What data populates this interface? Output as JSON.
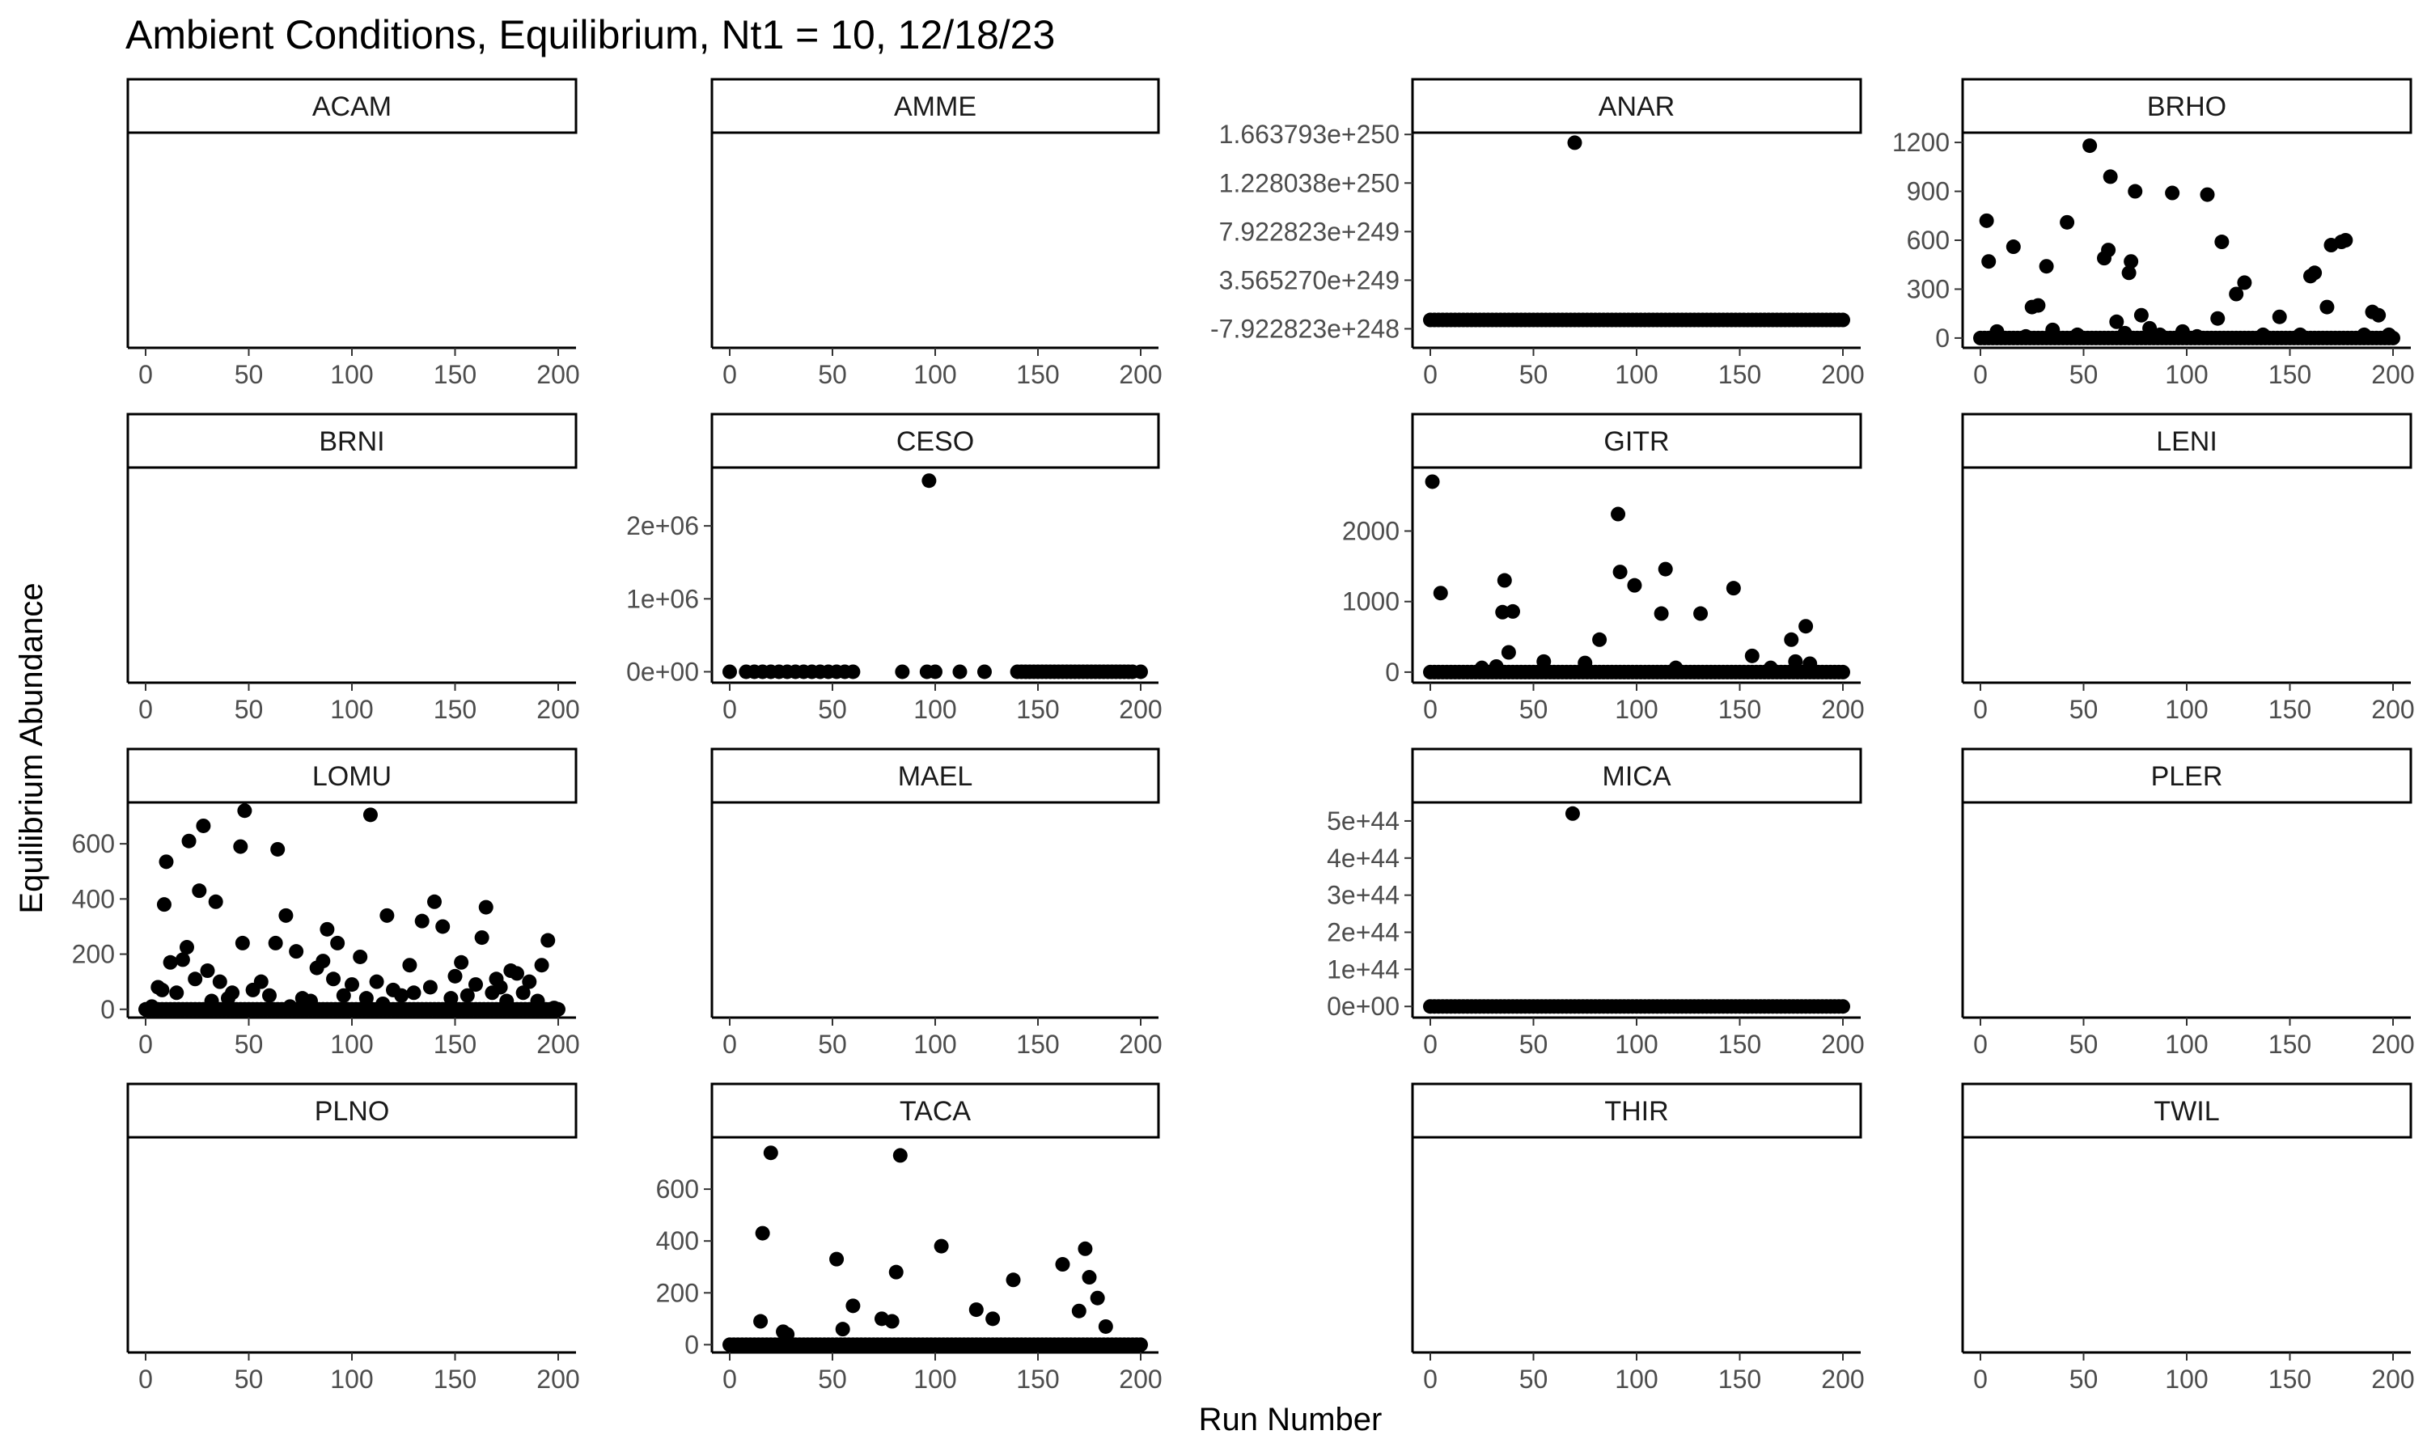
{
  "chart_data": {
    "type": "scatter",
    "title": "Ambient Conditions, Equilibrium, Nt1 = 10, 12/18/23",
    "xlabel": "Run Number",
    "ylabel": "Equilibrium Abundance",
    "layout": "facet grid, 4 rows x 4 columns, free y scales",
    "grid": false,
    "legend": "none",
    "point_color": "#000000",
    "xlim": [
      0,
      200
    ],
    "x_ticks": [
      "0",
      "50",
      "100",
      "150",
      "200"
    ],
    "panels": [
      {
        "name": "ACAM",
        "ylim": [
          0,
          1
        ],
        "y_ticks": [],
        "points": []
      },
      {
        "name": "AMME",
        "ylim": [
          0,
          1
        ],
        "y_ticks": [],
        "points": []
      },
      {
        "name": "ANAR",
        "ylim": [
          -2.5e+249,
          1.68e+250
        ],
        "y_ticks": [
          {
            "v": -7.922823e+248,
            "label": "-7.922823e+248"
          },
          {
            "v": 3.56527e+249,
            "label": "3.565270e+249"
          },
          {
            "v": 7.922823e+249,
            "label": "7.922823e+249"
          },
          {
            "v": 1.228038e+250,
            "label": "1.228038e+250"
          },
          {
            "v": 1.663793e+250,
            "label": "1.663793e+250"
          }
        ],
        "points": [
          [
            70,
            1.59e+250
          ]
        ],
        "baseline": 0
      },
      {
        "name": "BRHO",
        "ylim": [
          -60,
          1260
        ],
        "y_ticks": [
          {
            "v": 0,
            "label": "0"
          },
          {
            "v": 300,
            "label": "300"
          },
          {
            "v": 600,
            "label": "600"
          },
          {
            "v": 900,
            "label": "900"
          },
          {
            "v": 1200,
            "label": "1200"
          }
        ],
        "points": [
          [
            3,
            720
          ],
          [
            4,
            470
          ],
          [
            8,
            40
          ],
          [
            16,
            560
          ],
          [
            22,
            10
          ],
          [
            25,
            190
          ],
          [
            28,
            200
          ],
          [
            32,
            440
          ],
          [
            35,
            50
          ],
          [
            42,
            710
          ],
          [
            47,
            20
          ],
          [
            53,
            1180
          ],
          [
            60,
            490
          ],
          [
            62,
            540
          ],
          [
            63,
            990
          ],
          [
            66,
            100
          ],
          [
            70,
            30
          ],
          [
            72,
            400
          ],
          [
            73,
            470
          ],
          [
            75,
            900
          ],
          [
            78,
            140
          ],
          [
            82,
            60
          ],
          [
            87,
            20
          ],
          [
            93,
            890
          ],
          [
            98,
            40
          ],
          [
            105,
            10
          ],
          [
            110,
            880
          ],
          [
            115,
            120
          ],
          [
            117,
            590
          ],
          [
            124,
            270
          ],
          [
            128,
            340
          ],
          [
            137,
            20
          ],
          [
            145,
            130
          ],
          [
            155,
            20
          ],
          [
            160,
            380
          ],
          [
            162,
            400
          ],
          [
            168,
            190
          ],
          [
            170,
            570
          ],
          [
            175,
            590
          ],
          [
            177,
            600
          ],
          [
            186,
            20
          ],
          [
            190,
            160
          ],
          [
            193,
            140
          ],
          [
            198,
            20
          ]
        ],
        "baseline": 0
      },
      {
        "name": "BRNI",
        "ylim": [
          0,
          1
        ],
        "y_ticks": [],
        "points": []
      },
      {
        "name": "CESO",
        "ylim": [
          -150000,
          2800000
        ],
        "y_ticks": [
          {
            "v": 0,
            "label": "0e+00"
          },
          {
            "v": 1000000,
            "label": "1e+06"
          },
          {
            "v": 2000000,
            "label": "2e+06"
          }
        ],
        "points": [
          [
            97,
            2620000
          ]
        ],
        "baseline": 0,
        "baseline_sparse": true
      },
      {
        "name": "GITR",
        "ylim": [
          -150,
          2900
        ],
        "y_ticks": [
          {
            "v": 0,
            "label": "0"
          },
          {
            "v": 1000,
            "label": "1000"
          },
          {
            "v": 2000,
            "label": "2000"
          }
        ],
        "points": [
          [
            1,
            2700
          ],
          [
            5,
            1120
          ],
          [
            25,
            60
          ],
          [
            32,
            80
          ],
          [
            35,
            850
          ],
          [
            36,
            1300
          ],
          [
            38,
            280
          ],
          [
            40,
            860
          ],
          [
            55,
            150
          ],
          [
            75,
            130
          ],
          [
            82,
            460
          ],
          [
            91,
            2240
          ],
          [
            92,
            1420
          ],
          [
            99,
            1230
          ],
          [
            112,
            830
          ],
          [
            114,
            1460
          ],
          [
            119,
            60
          ],
          [
            131,
            830
          ],
          [
            147,
            1190
          ],
          [
            156,
            230
          ],
          [
            165,
            60
          ],
          [
            175,
            460
          ],
          [
            177,
            150
          ],
          [
            182,
            650
          ],
          [
            184,
            120
          ]
        ],
        "baseline": 0
      },
      {
        "name": "LENI",
        "ylim": [
          0,
          1
        ],
        "y_ticks": [],
        "points": []
      },
      {
        "name": "LOMU",
        "ylim": [
          -30,
          750
        ],
        "y_ticks": [
          {
            "v": 0,
            "label": "0"
          },
          {
            "v": 200,
            "label": "200"
          },
          {
            "v": 400,
            "label": "400"
          },
          {
            "v": 600,
            "label": "600"
          }
        ],
        "points": [
          [
            3,
            10
          ],
          [
            6,
            80
          ],
          [
            8,
            70
          ],
          [
            9,
            380
          ],
          [
            10,
            535
          ],
          [
            12,
            170
          ],
          [
            15,
            60
          ],
          [
            18,
            180
          ],
          [
            20,
            225
          ],
          [
            21,
            610
          ],
          [
            24,
            110
          ],
          [
            26,
            430
          ],
          [
            28,
            665
          ],
          [
            30,
            140
          ],
          [
            32,
            30
          ],
          [
            34,
            390
          ],
          [
            36,
            100
          ],
          [
            40,
            40
          ],
          [
            42,
            60
          ],
          [
            46,
            590
          ],
          [
            47,
            240
          ],
          [
            48,
            720
          ],
          [
            52,
            70
          ],
          [
            56,
            100
          ],
          [
            60,
            50
          ],
          [
            63,
            240
          ],
          [
            64,
            580
          ],
          [
            68,
            340
          ],
          [
            70,
            10
          ],
          [
            73,
            210
          ],
          [
            76,
            40
          ],
          [
            80,
            30
          ],
          [
            83,
            150
          ],
          [
            86,
            175
          ],
          [
            88,
            290
          ],
          [
            91,
            110
          ],
          [
            93,
            240
          ],
          [
            96,
            50
          ],
          [
            100,
            90
          ],
          [
            104,
            190
          ],
          [
            107,
            40
          ],
          [
            109,
            705
          ],
          [
            112,
            100
          ],
          [
            115,
            20
          ],
          [
            117,
            340
          ],
          [
            120,
            70
          ],
          [
            124,
            50
          ],
          [
            128,
            160
          ],
          [
            130,
            60
          ],
          [
            134,
            320
          ],
          [
            138,
            80
          ],
          [
            140,
            390
          ],
          [
            144,
            300
          ],
          [
            148,
            40
          ],
          [
            150,
            120
          ],
          [
            153,
            170
          ],
          [
            156,
            50
          ],
          [
            160,
            90
          ],
          [
            163,
            260
          ],
          [
            165,
            370
          ],
          [
            168,
            60
          ],
          [
            170,
            110
          ],
          [
            172,
            80
          ],
          [
            175,
            30
          ],
          [
            177,
            140
          ],
          [
            180,
            130
          ],
          [
            183,
            60
          ],
          [
            186,
            100
          ],
          [
            190,
            30
          ],
          [
            192,
            160
          ],
          [
            195,
            250
          ],
          [
            198,
            5
          ]
        ],
        "baseline": 0
      },
      {
        "name": "MAEL",
        "ylim": [
          0,
          1
        ],
        "y_ticks": [],
        "points": []
      },
      {
        "name": "MICA",
        "ylim": [
          -3e+43,
          5.5e+44
        ],
        "y_ticks": [
          {
            "v": 0,
            "label": "0e+00"
          },
          {
            "v": 1e+44,
            "label": "1e+44"
          },
          {
            "v": 2e+44,
            "label": "2e+44"
          },
          {
            "v": 3e+44,
            "label": "3e+44"
          },
          {
            "v": 4e+44,
            "label": "4e+44"
          },
          {
            "v": 5e+44,
            "label": "5e+44"
          }
        ],
        "points": [
          [
            69,
            5.2e+44
          ]
        ],
        "baseline": 0
      },
      {
        "name": "PLER",
        "ylim": [
          0,
          1
        ],
        "y_ticks": [],
        "points": []
      },
      {
        "name": "PLNO",
        "ylim": [
          0,
          1
        ],
        "y_ticks": [],
        "points": []
      },
      {
        "name": "TACA",
        "ylim": [
          -30,
          800
        ],
        "y_ticks": [
          {
            "v": 0,
            "label": "0"
          },
          {
            "v": 200,
            "label": "200"
          },
          {
            "v": 400,
            "label": "400"
          },
          {
            "v": 600,
            "label": "600"
          }
        ],
        "points": [
          [
            15,
            90
          ],
          [
            16,
            430
          ],
          [
            20,
            740
          ],
          [
            26,
            50
          ],
          [
            28,
            40
          ],
          [
            52,
            330
          ],
          [
            55,
            60
          ],
          [
            60,
            150
          ],
          [
            74,
            100
          ],
          [
            79,
            90
          ],
          [
            81,
            280
          ],
          [
            83,
            730
          ],
          [
            103,
            380
          ],
          [
            120,
            135
          ],
          [
            128,
            100
          ],
          [
            138,
            250
          ],
          [
            162,
            310
          ],
          [
            170,
            130
          ],
          [
            173,
            370
          ],
          [
            175,
            260
          ],
          [
            179,
            180
          ],
          [
            183,
            70
          ]
        ],
        "baseline": 0
      },
      {
        "name": "THIR",
        "ylim": [
          0,
          1
        ],
        "y_ticks": [],
        "points": []
      },
      {
        "name": "TWIL",
        "ylim": [
          0,
          1
        ],
        "y_ticks": [],
        "points": []
      }
    ]
  }
}
